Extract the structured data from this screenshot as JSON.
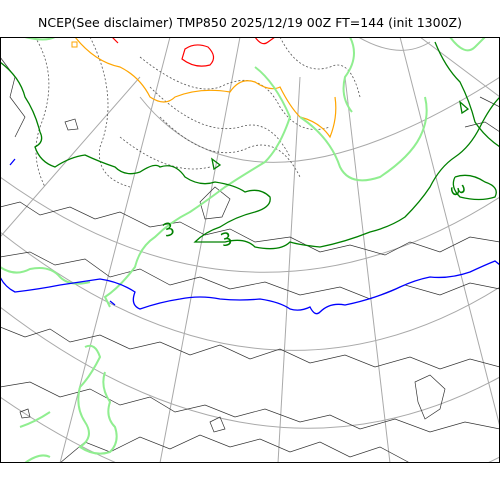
{
  "title": "NCEP(See disclaimer) TMP850 2025/12/19 00Z FT=144 (init 1300Z)",
  "contour_labels": [
    {
      "text": "3",
      "color": "#008000"
    },
    {
      "text": "3",
      "color": "#008000"
    },
    {
      "text": "3",
      "color": "#008000"
    }
  ],
  "colors": {
    "coast": "#333333",
    "graticule": "#a9a9a9",
    "isotherm_dotted": "#555555",
    "isotherm_orange": "#ffa500",
    "isotherm_red": "#ff0000",
    "isotherm_lightgreen": "#90ee90",
    "isotherm_green": "#008000",
    "isotherm_blue": "#0000ff"
  }
}
